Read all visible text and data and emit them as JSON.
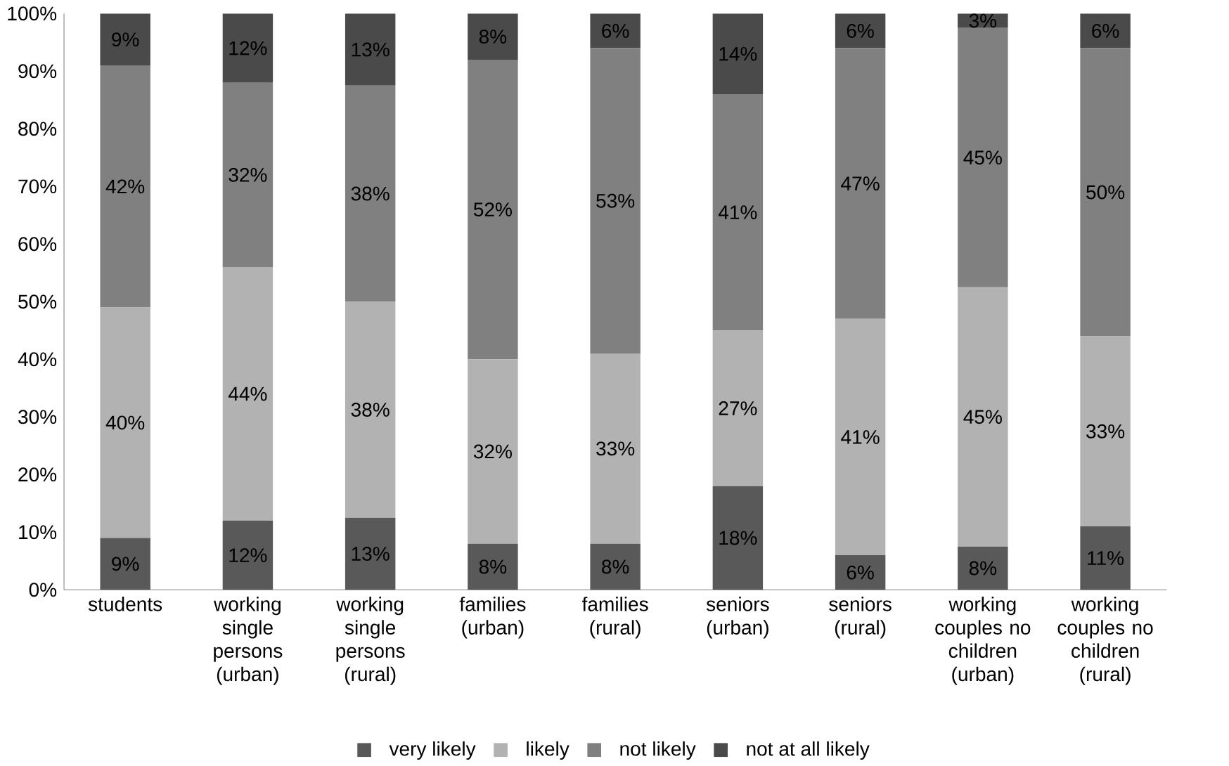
{
  "chart_data": {
    "type": "bar",
    "stacked": true,
    "categories": [
      "students",
      "working single persons (urban)",
      "working single persons (rural)",
      "families (urban)",
      "families (rural)",
      "seniors (urban)",
      "seniors (rural)",
      "working couples no children (urban)",
      "working couples no children (rural)"
    ],
    "series": [
      {
        "name": "very likely",
        "color": "#595959",
        "values": [
          9,
          12,
          12.5,
          8,
          8,
          18,
          6,
          7.5,
          11
        ],
        "value_labels": [
          "9%",
          "12%",
          "13%",
          "8%",
          "8%",
          "18%",
          "6%",
          "8%",
          "11%"
        ]
      },
      {
        "name": "likely",
        "color": "#b2b2b2",
        "values": [
          40,
          44,
          37.5,
          32,
          33,
          27,
          41,
          45,
          33
        ],
        "value_labels": [
          "40%",
          "44%",
          "38%",
          "32%",
          "33%",
          "27%",
          "41%",
          "45%",
          "33%"
        ]
      },
      {
        "name": "not likely",
        "color": "#808080",
        "values": [
          42,
          32,
          37.5,
          52,
          53,
          41,
          47,
          45,
          50
        ],
        "value_labels": [
          "42%",
          "32%",
          "38%",
          "52%",
          "53%",
          "41%",
          "47%",
          "45%",
          "50%"
        ]
      },
      {
        "name": "not at all likely",
        "color": "#4a4a4a",
        "values": [
          9,
          12,
          12.5,
          8,
          6,
          14,
          6,
          2.5,
          6
        ],
        "value_labels": [
          "9%",
          "12%",
          "13%",
          "8%",
          "6%",
          "14%",
          "6%",
          "3%",
          "6%"
        ]
      }
    ],
    "ylim": [
      0,
      100
    ],
    "yticks": [
      {
        "value": 0,
        "label": "0%"
      },
      {
        "value": 10,
        "label": "10%"
      },
      {
        "value": 20,
        "label": "20%"
      },
      {
        "value": 30,
        "label": "30%"
      },
      {
        "value": 40,
        "label": "40%"
      },
      {
        "value": 50,
        "label": "50%"
      },
      {
        "value": 60,
        "label": "60%"
      },
      {
        "value": 70,
        "label": "70%"
      },
      {
        "value": 80,
        "label": "80%"
      },
      {
        "value": 90,
        "label": "90%"
      },
      {
        "value": 100,
        "label": "100%"
      }
    ],
    "grid": false,
    "legend": "bottom"
  }
}
